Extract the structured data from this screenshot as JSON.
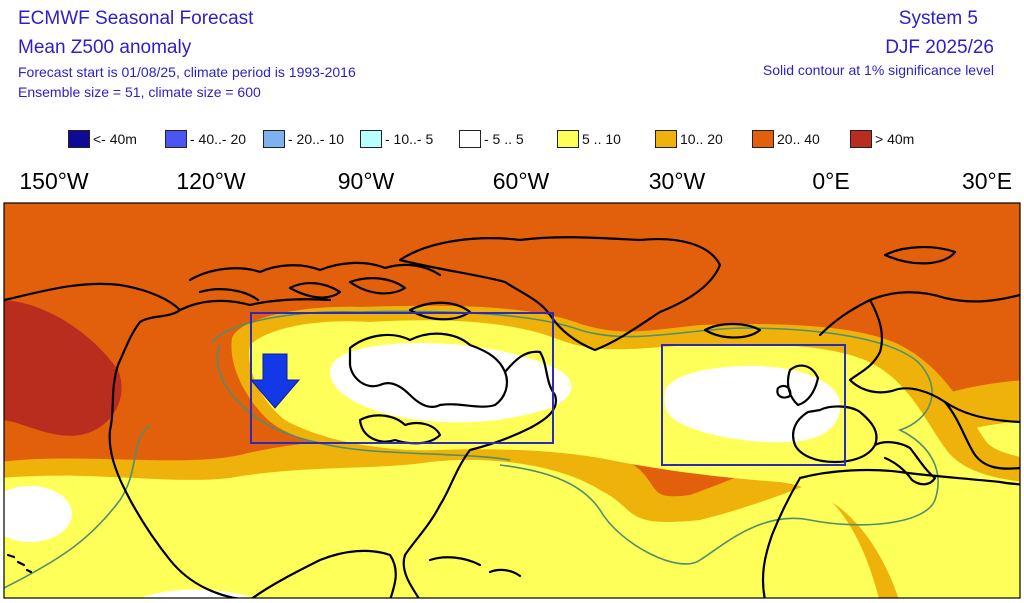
{
  "header": {
    "title_left_1": "ECMWF Seasonal Forecast",
    "title_left_2": "Mean Z500 anomaly",
    "title_left_3": "Forecast start is 01/08/25, climate period is 1993-2016",
    "title_left_4": "Ensemble size = 51, climate size = 600",
    "title_right_1": "System 5",
    "title_right_2": "DJF 2025/26",
    "title_right_3": "Solid contour at 1% significance level"
  },
  "legend": [
    {
      "label": "<- 40m",
      "color": "#0f0a96"
    },
    {
      "label": "- 40..- 20",
      "color": "#4a55f2"
    },
    {
      "label": "- 20..- 10",
      "color": "#7fb0f0"
    },
    {
      "label": "- 10..- 5",
      "color": "#b8ffff"
    },
    {
      "label": "- 5 .. 5",
      "color": "#ffffff"
    },
    {
      "label": "5 .. 10",
      "color": "#ffff5a"
    },
    {
      "label": "10.. 20",
      "color": "#eeb20b"
    },
    {
      "label": "20.. 40",
      "color": "#e25f0c"
    },
    {
      "label": ">  40m",
      "color": "#b92d1e"
    }
  ],
  "longitudes": [
    "150°W",
    "120°W",
    "90°W",
    "60°W",
    "30°W",
    "0°E",
    "30°E"
  ],
  "map": {
    "colors": {
      "strong": "#b92d1e",
      "orange": "#e25f0c",
      "gold": "#eeb20b",
      "yellow": "#ffff5a",
      "white": "#ffffff",
      "box": "#2b2bb8",
      "arrow": "#1238e8",
      "contour": "#4f8f6c",
      "coast": "#000000"
    },
    "annotation_boxes": [
      "north-america-box",
      "europe-box"
    ],
    "arrow_icon": "down-arrow-icon"
  }
}
